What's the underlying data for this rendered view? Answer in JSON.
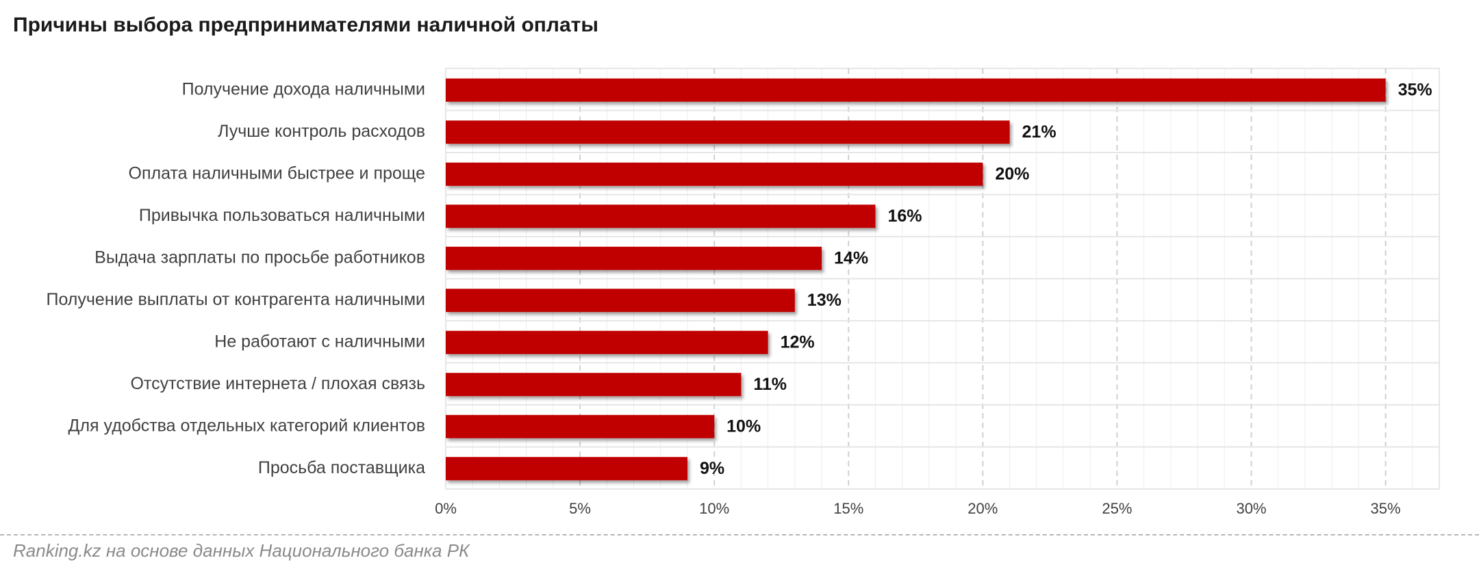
{
  "title": "Причины выбора предпринимателями наличной оплаты",
  "source": "Ranking.kz на основе данных Национального банка РК",
  "colors": {
    "bar": "#c00000",
    "grid_dashed": "#d0d0d0",
    "grid_solid": "#e6e6e6",
    "label_text": "#404040",
    "value_text": "#111111"
  },
  "chart_data": {
    "type": "bar",
    "orientation": "horizontal",
    "categories": [
      "Получение дохода наличными",
      "Лучше контроль расходов",
      "Оплата наличными быстрее и проще",
      "Привычка пользоваться наличными",
      "Выдача зарплаты по просьбе работников",
      "Получение выплаты от контрагента наличными",
      "Не работают с наличными",
      "Отсутствие интернета / плохая связь",
      "Для удобства отдельных категорий клиентов",
      "Просьба поставщика"
    ],
    "values": [
      35,
      21,
      20,
      16,
      14,
      13,
      12,
      11,
      10,
      9
    ],
    "data_labels": [
      "35%",
      "21%",
      "20%",
      "16%",
      "14%",
      "13%",
      "12%",
      "11%",
      "10%",
      "9%"
    ],
    "x_ticks": [
      0,
      5,
      10,
      15,
      20,
      25,
      30,
      35
    ],
    "x_tick_labels": [
      "0%",
      "5%",
      "10%",
      "15%",
      "20%",
      "25%",
      "30%",
      "35%"
    ],
    "xlim": [
      0,
      37
    ],
    "grid": true,
    "legend": "none"
  }
}
